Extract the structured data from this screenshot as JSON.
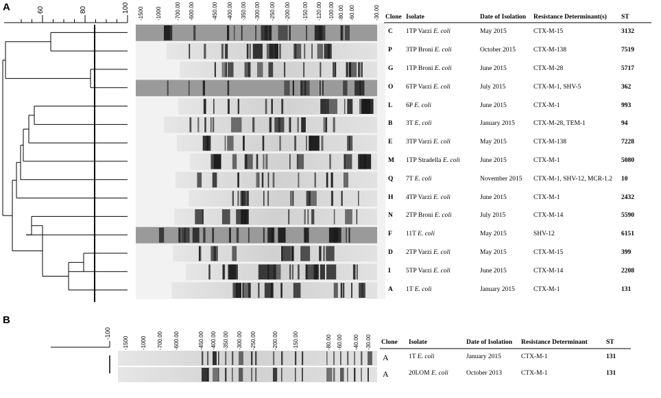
{
  "panel_a": {
    "label": "A",
    "scale_ticks": [
      "60",
      "80",
      "100"
    ],
    "size_markers": [
      "1500",
      "1000",
      "700.00",
      "600.00",
      "450.00",
      "400.00",
      "350.00",
      "300.00",
      "250.00",
      "200.00",
      "150.00",
      "120.00",
      "100.00",
      "80.00",
      "60.00",
      "30.00"
    ],
    "headers": {
      "clone": "Clone",
      "isolate": "Isolate",
      "date": "Date of Isolation",
      "resistance": "Resistance Determinant(s)",
      "st": "ST"
    },
    "rows": [
      {
        "clone": "C",
        "isolate_pre": "1TP Varzi ",
        "isolate_it": "E. coli",
        "date": "May 2015",
        "resistance": "CTX-M-15",
        "st": "3132"
      },
      {
        "clone": "P",
        "isolate_pre": "3TP Broni ",
        "isolate_it": "E. coli",
        "date": "October 2015",
        "resistance": "CTX-M-138",
        "st": "7519"
      },
      {
        "clone": "G",
        "isolate_pre": "1TP Broni ",
        "isolate_it": "E. coli",
        "date": "June 2015",
        "resistance": "CTX-M-28",
        "st": "5717"
      },
      {
        "clone": "O",
        "isolate_pre": "6TP Varzi ",
        "isolate_it": "E. coli",
        "date": "July 2015",
        "resistance": "CTX-M-1, SHV-5",
        "st": "362"
      },
      {
        "clone": "L",
        "isolate_pre": "6P ",
        "isolate_it": "E. coli",
        "date": "June 2015",
        "resistance": "CTX-M-1",
        "st": "993"
      },
      {
        "clone": "B",
        "isolate_pre": "3T ",
        "isolate_it": "E. coli",
        "date": "January 2015",
        "resistance": "CTX-M-28, TEM-1",
        "st": "94"
      },
      {
        "clone": "E",
        "isolate_pre": "3TP Varzi ",
        "isolate_it": "E. coli",
        "date": "May 2015",
        "resistance": "CTX-M-138",
        "st": "7228"
      },
      {
        "clone": "M",
        "isolate_pre": "1TP Stradella ",
        "isolate_it": "E. coli",
        "date": "June 2015",
        "resistance": "CTX-M-1",
        "st": "5080"
      },
      {
        "clone": "Q",
        "isolate_pre": "7T ",
        "isolate_it": "E. coli",
        "date": "November 2015",
        "resistance": "CTX-M-1, SHV-12, MCR-1.2",
        "st": "10"
      },
      {
        "clone": "H",
        "isolate_pre": "4TP Varzi ",
        "isolate_it": "E. coli",
        "date": "June 2015",
        "resistance": "CTX-M-1",
        "st": "2432"
      },
      {
        "clone": "N",
        "isolate_pre": "2TP Broni ",
        "isolate_it": "E. coli",
        "date": "July 2015",
        "resistance": "CTX-M-14",
        "st": "5590"
      },
      {
        "clone": "F",
        "isolate_pre": "11T ",
        "isolate_it": "E. coli",
        "date": "May 2015",
        "resistance": "SHV-12",
        "st": "6151"
      },
      {
        "clone": "D",
        "isolate_pre": "2TP Varzi ",
        "isolate_it": "E. coli",
        "date": "May 2015",
        "resistance": "CTX-M-15",
        "st": "399"
      },
      {
        "clone": "I",
        "isolate_pre": "5TP Varzi ",
        "isolate_it": "E. coli",
        "date": "June 2015",
        "resistance": "CTX-M-14",
        "st": "2208"
      },
      {
        "clone": "A",
        "isolate_pre": "1T ",
        "isolate_it": "E. coli",
        "date": "January 2015",
        "resistance": "CTX-M-1",
        "st": "131"
      }
    ]
  },
  "panel_b": {
    "label": "B",
    "scale_tick": "100",
    "size_markers": [
      "1500",
      "1000",
      "700.00",
      "600.00",
      "450.00",
      "400.00",
      "350.00",
      "300.00",
      "250.00",
      "200.00",
      "150.00",
      "80.00",
      "60.00",
      "40.00",
      "30.00"
    ],
    "headers": {
      "clone": "Clone",
      "isolate": "Isolate",
      "date": "Date of Isolation",
      "resistance": "Resistance Determinant",
      "st": "ST"
    },
    "rows": [
      {
        "clone": "A",
        "isolate_pre": "1T ",
        "isolate_it": "E. coli",
        "date": "January 2015",
        "resistance": "CTX-M-1",
        "st": "131"
      },
      {
        "clone": "A",
        "isolate_pre": "20LOM ",
        "isolate_it": "E. coli",
        "date": "October 2013",
        "resistance": "CTX-M-1",
        "st": "131"
      }
    ]
  },
  "colors": {
    "line": "#000000",
    "gel_bg": "#d8d8d8",
    "band": "#202020"
  }
}
